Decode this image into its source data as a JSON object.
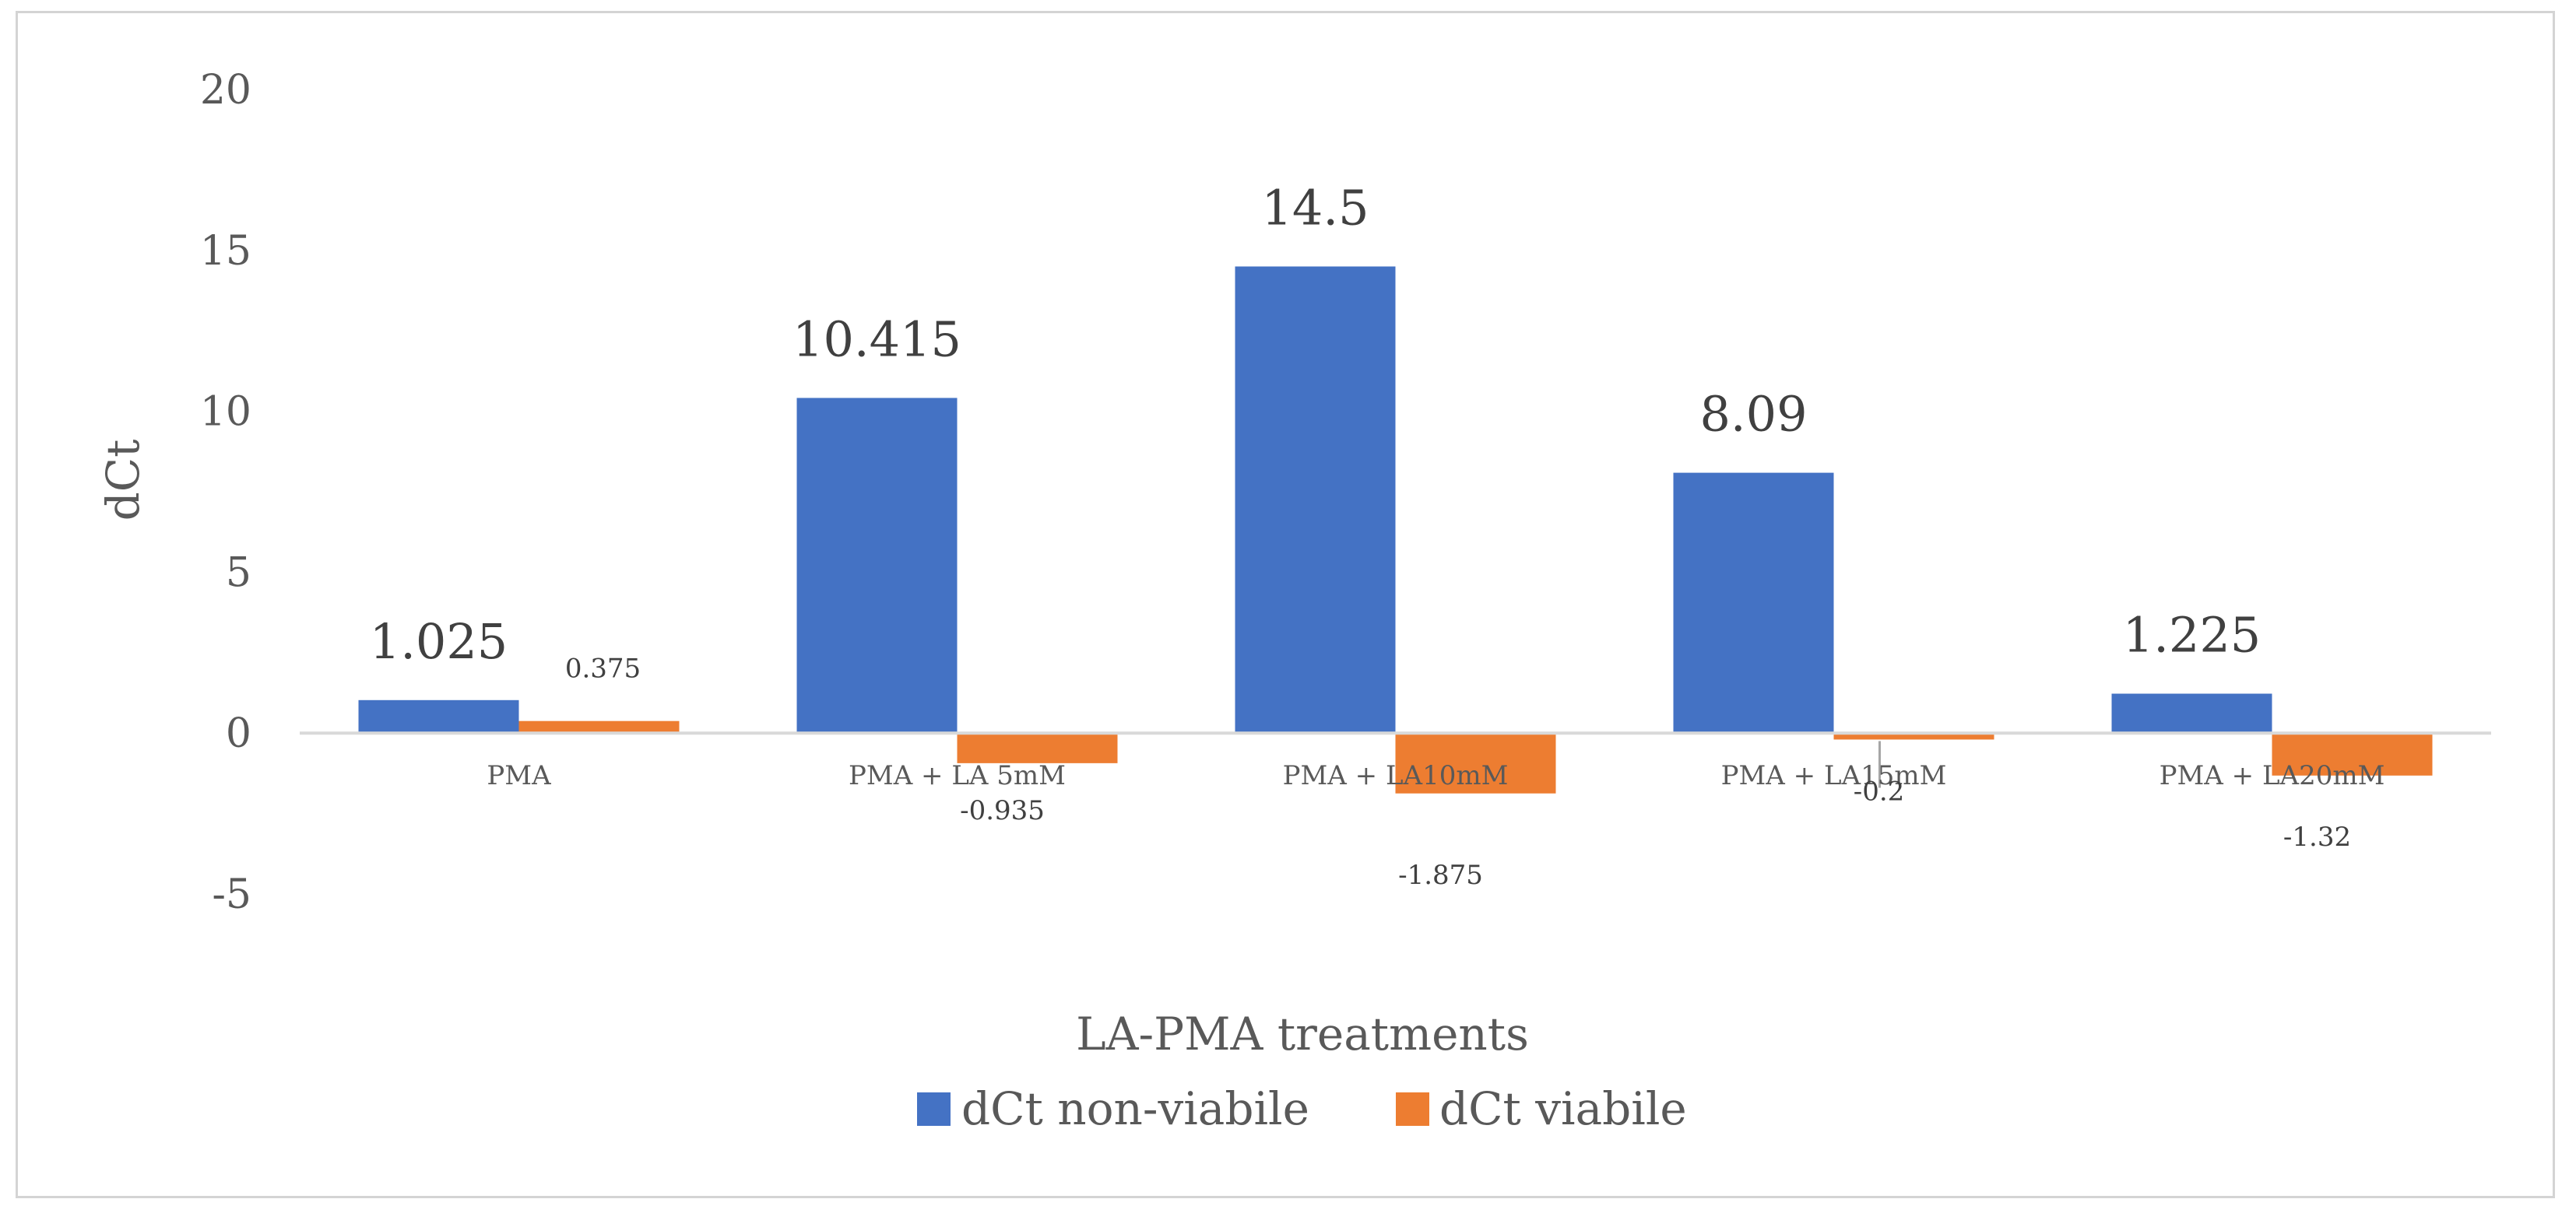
{
  "chart_data": {
    "type": "bar",
    "title": "",
    "xlabel": "LA-PMA treatments",
    "ylabel": "dCt",
    "ylim": [
      -5,
      20
    ],
    "yticks": [
      -5,
      0,
      5,
      10,
      15,
      20
    ],
    "ytick_labels": [
      "-5",
      "0",
      "5",
      "10",
      "15",
      "20"
    ],
    "grid": false,
    "legend_position": "bottom-center",
    "categories": [
      "PMA",
      "PMA + LA 5mM",
      "PMA + LA10mM",
      "PMA + LA15mM",
      "PMA + LA20mM"
    ],
    "series": [
      {
        "name": "dCt non-viabile",
        "color": "#4472C4",
        "values": [
          1.025,
          10.415,
          14.5,
          8.09,
          1.225
        ],
        "labels": [
          "1.025",
          "10.415",
          "14.5",
          "8.09",
          "1.225"
        ]
      },
      {
        "name": "dCt viabile",
        "color": "#ED7D31",
        "values": [
          0.375,
          -0.935,
          -1.875,
          -0.2,
          -1.32
        ],
        "labels": [
          "0.375",
          "-0.935",
          "-1.875",
          "-0.2",
          "-1.32"
        ]
      }
    ]
  },
  "colors": {
    "axis_line": "#d9d9d9",
    "frame": "#d4d4d4",
    "leader_line": "#a6a6a6"
  }
}
